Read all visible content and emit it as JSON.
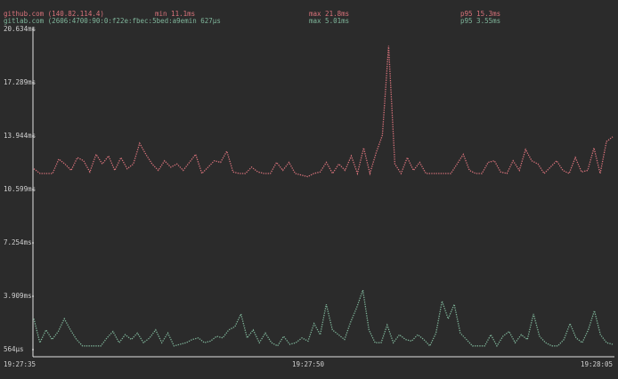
{
  "chart_data": {
    "type": "line",
    "series": [
      {
        "name": "github.com (140.82.114.4)",
        "color": "#d9737b",
        "stats": [
          "min 11.1ms",
          "max 21.8ms",
          "p95 15.3ms"
        ],
        "values": [
          11.9,
          11.6,
          11.6,
          11.6,
          12.5,
          12.2,
          11.8,
          12.6,
          12.4,
          11.7,
          12.8,
          12.2,
          12.7,
          11.8,
          12.6,
          11.9,
          12.2,
          13.5,
          12.8,
          12.2,
          11.8,
          12.4,
          12.0,
          12.2,
          11.8,
          12.3,
          12.8,
          11.6,
          12.0,
          12.4,
          12.3,
          13.0,
          11.7,
          11.6,
          11.6,
          12.0,
          11.7,
          11.6,
          11.6,
          12.3,
          11.8,
          12.3,
          11.6,
          11.5,
          11.4,
          11.6,
          11.7,
          12.3,
          11.6,
          12.2,
          11.8,
          12.7,
          11.6,
          13.2,
          11.6,
          12.9,
          14.0,
          19.6,
          12.2,
          11.6,
          12.6,
          11.8,
          12.3,
          11.6,
          11.6,
          11.6,
          11.6,
          11.6,
          12.2,
          12.8,
          11.8,
          11.6,
          11.6,
          12.3,
          12.4,
          11.7,
          11.6,
          12.4,
          11.8,
          13.1,
          12.4,
          12.2,
          11.6,
          12.0,
          12.4,
          11.8,
          11.6,
          12.6,
          11.7,
          11.8,
          13.2,
          11.6,
          13.6,
          13.9
        ]
      },
      {
        "name": "gitlab.com (2606:4700:90:0:f22e:fbec:5bed:a9e",
        "color": "#7fb59a",
        "stats": [
          "min 627µs",
          "max 5.01ms",
          "p95 3.55ms"
        ],
        "values": [
          2.5,
          1.0,
          1.8,
          1.2,
          1.7,
          2.5,
          1.8,
          1.2,
          0.8,
          0.8,
          0.8,
          0.8,
          1.3,
          1.7,
          1.0,
          1.5,
          1.2,
          1.6,
          1.0,
          1.3,
          1.8,
          1.0,
          1.6,
          0.8,
          0.9,
          1.0,
          1.2,
          1.3,
          1.0,
          1.1,
          1.4,
          1.3,
          1.8,
          2.0,
          2.8,
          1.3,
          1.8,
          1.0,
          1.6,
          1.0,
          0.8,
          1.4,
          0.9,
          1.0,
          1.3,
          1.1,
          2.2,
          1.5,
          3.4,
          1.8,
          1.5,
          1.2,
          2.3,
          3.2,
          4.3,
          1.8,
          1.0,
          1.0,
          2.1,
          1.0,
          1.5,
          1.2,
          1.1,
          1.5,
          1.2,
          0.8,
          1.6,
          3.6,
          2.5,
          3.4,
          1.6,
          1.2,
          0.8,
          0.8,
          0.8,
          1.5,
          0.8,
          1.4,
          1.7,
          1.0,
          1.5,
          1.2,
          2.8,
          1.4,
          1.0,
          0.8,
          0.8,
          1.2,
          2.2,
          1.3,
          1.0,
          1.8,
          3.0,
          1.5,
          1.0,
          0.9
        ]
      }
    ],
    "ylim": [
      0.564,
      20.634
    ],
    "yticks": [
      {
        "value": 20.634,
        "label": "20.634ms"
      },
      {
        "value": 17.289,
        "label": "17.289ms"
      },
      {
        "value": 13.944,
        "label": "13.944ms"
      },
      {
        "value": 10.599,
        "label": "10.599ms"
      },
      {
        "value": 7.254,
        "label": "7.254ms"
      },
      {
        "value": 3.909,
        "label": "3.909ms"
      },
      {
        "value": 0.564,
        "label": "564µs"
      }
    ],
    "xticks": [
      "19:27:35",
      "19:27:50",
      "19:28:05"
    ]
  }
}
